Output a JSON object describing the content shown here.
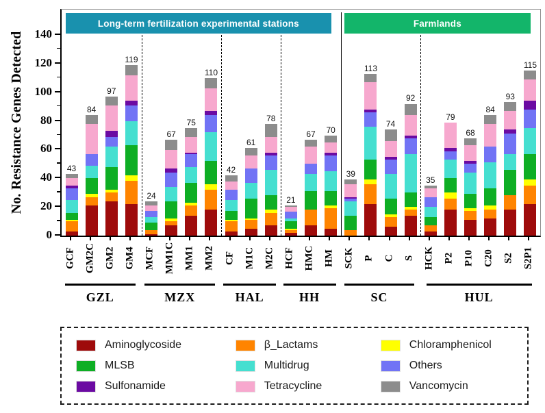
{
  "header": {
    "bands": [
      {
        "label": "Long-term fertilization experimental stations",
        "color": "#1991AE"
      },
      {
        "label": "Farmlands",
        "color": "#13B56A"
      }
    ]
  },
  "legend": {
    "items": [
      {
        "label": "Aminoglycoside",
        "color": "#9E0B0B"
      },
      {
        "label": "β_Lactams",
        "color": "#FF8400"
      },
      {
        "label": "Chloramphenicol",
        "color": "#FFFF00"
      },
      {
        "label": "MLSB",
        "color": "#0EAE24"
      },
      {
        "label": "Multidrug",
        "color": "#45DFD0"
      },
      {
        "label": "Others",
        "color": "#7173F5"
      },
      {
        "label": "Sulfonamide",
        "color": "#6B0AA2"
      },
      {
        "label": "Tetracycline",
        "color": "#F7A8CE"
      },
      {
        "label": "Vancomycin",
        "color": "#8C8C8C"
      }
    ]
  },
  "chart_data": {
    "type": "bar",
    "stacked": true,
    "title": "",
    "ylabel": "No. Resistance Genes Detected",
    "xlabel": "",
    "ylim": [
      0,
      140
    ],
    "yticks": [
      0,
      20,
      40,
      60,
      80,
      100,
      120,
      140
    ],
    "grid": false,
    "legend_position": "bottom",
    "value_labels": "bar totals shown above each bar",
    "series": [
      {
        "name": "Aminoglycoside",
        "color": "#9E0B0B"
      },
      {
        "name": "β_Lactams",
        "color": "#FF8400"
      },
      {
        "name": "Chloramphenicol",
        "color": "#FFFF00"
      },
      {
        "name": "MLSB",
        "color": "#0EAE24"
      },
      {
        "name": "Multidrug",
        "color": "#45DFD0"
      },
      {
        "name": "Others",
        "color": "#7173F5"
      },
      {
        "name": "Sulfonamide",
        "color": "#6B0AA2"
      },
      {
        "name": "Tetracycline",
        "color": "#F7A8CE"
      },
      {
        "name": "Vancomycin",
        "color": "#8C8C8C"
      }
    ],
    "stack_order_note": "values arrays follow series order, bottom to top",
    "groups": [
      {
        "name": "GZL",
        "band": 0,
        "bars": [
          {
            "label": "GCF",
            "total": 43,
            "values": [
              3,
              7,
              1,
              5,
              9,
              8,
              2,
              5,
              3
            ]
          },
          {
            "label": "GM2C",
            "total": 84,
            "values": [
              21,
              6,
              2,
              11,
              9,
              8,
              0,
              21,
              6
            ]
          },
          {
            "label": "GM2",
            "total": 97,
            "values": [
              24,
              6,
              2,
              16,
              14,
              7,
              4,
              18,
              6
            ]
          },
          {
            "label": "GM4",
            "total": 119,
            "values": [
              22,
              16,
              4,
              21,
              17,
              11,
              3,
              18,
              7
            ]
          }
        ]
      },
      {
        "name": "MZX",
        "band": 0,
        "bars": [
          {
            "label": "MCF",
            "total": 24,
            "values": [
              1,
              3,
              0,
              5,
              4,
              4,
              0,
              4,
              3
            ]
          },
          {
            "label": "MM1C",
            "total": 67,
            "values": [
              7,
              3,
              2,
              12,
              10,
              10,
              3,
              13,
              7
            ]
          },
          {
            "label": "MM1",
            "total": 75,
            "values": [
              14,
              7,
              2,
              14,
              11,
              9,
              1,
              11,
              6
            ]
          },
          {
            "label": "MM2",
            "total": 110,
            "values": [
              18,
              14,
              4,
              16,
              20,
              12,
              3,
              16,
              7
            ]
          }
        ]
      },
      {
        "name": "HAL",
        "band": 0,
        "bars": [
          {
            "label": "CF",
            "total": 42,
            "values": [
              3,
              7,
              1,
              6,
              8,
              7,
              0,
              6,
              4
            ]
          },
          {
            "label": "M1C",
            "total": 61,
            "values": [
              5,
              6,
              1,
              14,
              11,
              10,
              0,
              9,
              5
            ]
          },
          {
            "label": "M2C",
            "total": 78,
            "values": [
              7,
              9,
              2,
              10,
              18,
              10,
              2,
              11,
              9
            ]
          }
        ]
      },
      {
        "name": "HH",
        "band": 0,
        "bars": [
          {
            "label": "HCF",
            "total": 21,
            "values": [
              2,
              2,
              1,
              5,
              2,
              5,
              0,
              3,
              1
            ]
          },
          {
            "label": "HMC",
            "total": 67,
            "values": [
              7,
              11,
              0,
              13,
              12,
              7,
              0,
              12,
              5
            ]
          },
          {
            "label": "HM",
            "total": 70,
            "values": [
              5,
              14,
              2,
              10,
              14,
              11,
              2,
              7,
              5
            ]
          }
        ]
      },
      {
        "name": "SC",
        "band": 1,
        "bars": [
          {
            "label": "SCK",
            "total": 39,
            "values": [
              0,
              4,
              0,
              10,
              10,
              2,
              1,
              9,
              3
            ]
          },
          {
            "label": "P",
            "total": 113,
            "values": [
              22,
              14,
              3,
              14,
              23,
              10,
              2,
              19,
              6
            ]
          },
          {
            "label": "C",
            "total": 74,
            "values": [
              6,
              7,
              2,
              11,
              17,
              10,
              2,
              11,
              8
            ]
          },
          {
            "label": "S",
            "total": 92,
            "values": [
              14,
              4,
              2,
              10,
              27,
              11,
              2,
              14,
              8
            ]
          }
        ]
      },
      {
        "name": "HUL",
        "band": 1,
        "bars": [
          {
            "label": "HCK",
            "total": 35,
            "values": [
              3,
              4,
              0,
              6,
              7,
              7,
              0,
              6,
              2
            ]
          },
          {
            "label": "P2",
            "total": 79,
            "values": [
              18,
              8,
              4,
              10,
              13,
              6,
              2,
              18,
              0
            ]
          },
          {
            "label": "P10",
            "total": 68,
            "values": [
              11,
              6,
              2,
              10,
              15,
              6,
              2,
              11,
              5
            ]
          },
          {
            "label": "C20",
            "total": 84,
            "values": [
              12,
              6,
              3,
              12,
              18,
              11,
              0,
              16,
              6
            ]
          },
          {
            "label": "S2",
            "total": 93,
            "values": [
              18,
              10,
              0,
              18,
              11,
              14,
              3,
              13,
              6
            ]
          },
          {
            "label": "S2P1",
            "total": 115,
            "values": [
              22,
              13,
              4,
              18,
              18,
              13,
              6,
              15,
              6
            ]
          }
        ]
      }
    ]
  }
}
